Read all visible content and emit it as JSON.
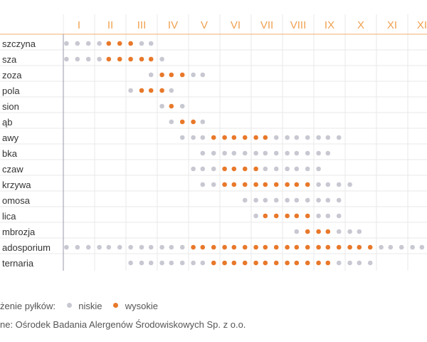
{
  "chart_data": {
    "type": "scatter",
    "months": [
      "I",
      "II",
      "III",
      "IV",
      "V",
      "VI",
      "VII",
      "VIII",
      "IX",
      "X",
      "XI",
      "XII"
    ],
    "rows": [
      {
        "label": "szczyna",
        "dots": [
          [
            0.1,
            "l"
          ],
          [
            0.45,
            "l"
          ],
          [
            0.8,
            "l"
          ],
          [
            1.15,
            "l"
          ],
          [
            1.45,
            "h"
          ],
          [
            1.8,
            "h"
          ],
          [
            2.15,
            "h"
          ],
          [
            2.5,
            "l"
          ],
          [
            2.8,
            "l"
          ]
        ]
      },
      {
        "label": "sza",
        "dots": [
          [
            0.1,
            "l"
          ],
          [
            0.45,
            "l"
          ],
          [
            0.8,
            "l"
          ],
          [
            1.15,
            "l"
          ],
          [
            1.45,
            "h"
          ],
          [
            1.8,
            "h"
          ],
          [
            2.15,
            "h"
          ],
          [
            2.5,
            "h"
          ],
          [
            2.8,
            "h"
          ],
          [
            3.15,
            "l"
          ]
        ]
      },
      {
        "label": "zoza",
        "dots": [
          [
            2.8,
            "l"
          ],
          [
            3.15,
            "h"
          ],
          [
            3.45,
            "h"
          ],
          [
            3.8,
            "h"
          ],
          [
            4.15,
            "l"
          ],
          [
            4.45,
            "l"
          ]
        ]
      },
      {
        "label": "pola",
        "dots": [
          [
            2.15,
            "l"
          ],
          [
            2.5,
            "h"
          ],
          [
            2.8,
            "h"
          ],
          [
            3.15,
            "h"
          ],
          [
            3.45,
            "l"
          ]
        ]
      },
      {
        "label": "sion",
        "dots": [
          [
            3.15,
            "l"
          ],
          [
            3.45,
            "h"
          ],
          [
            3.8,
            "l"
          ]
        ]
      },
      {
        "label": "ąb",
        "dots": [
          [
            3.45,
            "l"
          ],
          [
            3.8,
            "h"
          ],
          [
            4.15,
            "h"
          ],
          [
            4.45,
            "l"
          ]
        ]
      },
      {
        "label": "awy",
        "dots": [
          [
            3.8,
            "l"
          ],
          [
            4.15,
            "l"
          ],
          [
            4.45,
            "l"
          ],
          [
            4.8,
            "h"
          ],
          [
            5.15,
            "h"
          ],
          [
            5.45,
            "h"
          ],
          [
            5.8,
            "h"
          ],
          [
            6.15,
            "h"
          ],
          [
            6.45,
            "h"
          ],
          [
            6.8,
            "l"
          ],
          [
            7.15,
            "l"
          ],
          [
            7.45,
            "l"
          ],
          [
            7.8,
            "l"
          ],
          [
            8.15,
            "l"
          ],
          [
            8.45,
            "l"
          ],
          [
            8.8,
            "l"
          ]
        ]
      },
      {
        "label": "bka",
        "dots": [
          [
            4.45,
            "l"
          ],
          [
            4.8,
            "l"
          ],
          [
            5.15,
            "l"
          ],
          [
            5.45,
            "l"
          ],
          [
            5.8,
            "l"
          ],
          [
            6.15,
            "l"
          ],
          [
            6.45,
            "l"
          ],
          [
            6.8,
            "l"
          ],
          [
            7.15,
            "l"
          ],
          [
            7.45,
            "l"
          ],
          [
            7.8,
            "l"
          ],
          [
            8.15,
            "l"
          ],
          [
            8.45,
            "l"
          ]
        ]
      },
      {
        "label": "czaw",
        "dots": [
          [
            4.15,
            "l"
          ],
          [
            4.45,
            "l"
          ],
          [
            4.8,
            "l"
          ],
          [
            5.15,
            "h"
          ],
          [
            5.45,
            "h"
          ],
          [
            5.8,
            "h"
          ],
          [
            6.15,
            "h"
          ],
          [
            6.45,
            "l"
          ],
          [
            6.8,
            "l"
          ],
          [
            7.15,
            "l"
          ],
          [
            7.45,
            "l"
          ],
          [
            7.8,
            "l"
          ],
          [
            8.15,
            "l"
          ]
        ]
      },
      {
        "label": "krzywa",
        "dots": [
          [
            4.45,
            "l"
          ],
          [
            4.8,
            "l"
          ],
          [
            5.15,
            "h"
          ],
          [
            5.45,
            "h"
          ],
          [
            5.8,
            "h"
          ],
          [
            6.15,
            "h"
          ],
          [
            6.45,
            "h"
          ],
          [
            6.8,
            "h"
          ],
          [
            7.15,
            "h"
          ],
          [
            7.45,
            "h"
          ],
          [
            7.8,
            "h"
          ],
          [
            8.15,
            "l"
          ],
          [
            8.45,
            "l"
          ],
          [
            8.8,
            "l"
          ],
          [
            9.15,
            "l"
          ]
        ]
      },
      {
        "label": "omosa",
        "dots": [
          [
            5.8,
            "l"
          ],
          [
            6.15,
            "l"
          ],
          [
            6.45,
            "l"
          ],
          [
            6.8,
            "l"
          ],
          [
            7.15,
            "l"
          ],
          [
            7.45,
            "l"
          ],
          [
            7.8,
            "l"
          ],
          [
            8.15,
            "l"
          ],
          [
            8.45,
            "l"
          ],
          [
            8.8,
            "l"
          ]
        ]
      },
      {
        "label": "lica",
        "dots": [
          [
            6.15,
            "l"
          ],
          [
            6.45,
            "h"
          ],
          [
            6.8,
            "h"
          ],
          [
            7.15,
            "h"
          ],
          [
            7.45,
            "h"
          ],
          [
            7.8,
            "h"
          ],
          [
            8.15,
            "l"
          ],
          [
            8.45,
            "l"
          ],
          [
            8.8,
            "l"
          ]
        ]
      },
      {
        "label": "mbrozja",
        "dots": [
          [
            7.45,
            "l"
          ],
          [
            7.8,
            "h"
          ],
          [
            8.15,
            "h"
          ],
          [
            8.45,
            "h"
          ],
          [
            8.8,
            "l"
          ],
          [
            9.15,
            "l"
          ],
          [
            9.45,
            "l"
          ]
        ]
      },
      {
        "label": "adosporium",
        "dots": [
          [
            0.1,
            "l"
          ],
          [
            0.45,
            "l"
          ],
          [
            0.8,
            "l"
          ],
          [
            1.15,
            "l"
          ],
          [
            1.45,
            "l"
          ],
          [
            1.8,
            "l"
          ],
          [
            2.15,
            "l"
          ],
          [
            2.5,
            "l"
          ],
          [
            2.8,
            "l"
          ],
          [
            3.15,
            "l"
          ],
          [
            3.45,
            "l"
          ],
          [
            3.8,
            "l"
          ],
          [
            4.15,
            "h"
          ],
          [
            4.45,
            "h"
          ],
          [
            4.8,
            "h"
          ],
          [
            5.15,
            "h"
          ],
          [
            5.45,
            "h"
          ],
          [
            5.8,
            "h"
          ],
          [
            6.15,
            "h"
          ],
          [
            6.45,
            "h"
          ],
          [
            6.8,
            "h"
          ],
          [
            7.15,
            "h"
          ],
          [
            7.45,
            "h"
          ],
          [
            7.8,
            "h"
          ],
          [
            8.15,
            "h"
          ],
          [
            8.45,
            "h"
          ],
          [
            8.8,
            "h"
          ],
          [
            9.15,
            "h"
          ],
          [
            9.45,
            "h"
          ],
          [
            9.8,
            "h"
          ],
          [
            10.15,
            "l"
          ],
          [
            10.45,
            "l"
          ],
          [
            10.8,
            "l"
          ],
          [
            11.15,
            "l"
          ],
          [
            11.45,
            "l"
          ]
        ]
      },
      {
        "label": "ternaria",
        "dots": [
          [
            2.15,
            "l"
          ],
          [
            2.5,
            "l"
          ],
          [
            2.8,
            "l"
          ],
          [
            3.15,
            "l"
          ],
          [
            3.45,
            "l"
          ],
          [
            3.8,
            "l"
          ],
          [
            4.15,
            "l"
          ],
          [
            4.45,
            "l"
          ],
          [
            4.8,
            "h"
          ],
          [
            5.15,
            "h"
          ],
          [
            5.45,
            "h"
          ],
          [
            5.8,
            "h"
          ],
          [
            6.15,
            "h"
          ],
          [
            6.45,
            "h"
          ],
          [
            6.8,
            "h"
          ],
          [
            7.15,
            "h"
          ],
          [
            7.45,
            "h"
          ],
          [
            7.8,
            "h"
          ],
          [
            8.15,
            "h"
          ],
          [
            8.45,
            "h"
          ],
          [
            8.8,
            "l"
          ],
          [
            9.15,
            "l"
          ],
          [
            9.45,
            "l"
          ],
          [
            9.8,
            "l"
          ]
        ]
      }
    ],
    "level_codes": {
      "l": "niskie",
      "h": "wysokie"
    },
    "colors": {
      "low": "#c8c8d2",
      "high": "#e8782a",
      "month_label": "#f0a050",
      "grid": "#e8e8e8",
      "header_rule": "#f0b070",
      "axis": "#9a9aaa",
      "row_text": "#333333"
    }
  },
  "legend": {
    "prefix": "żenie pyłków:",
    "low_label": "niskie",
    "high_label": "wysokie"
  },
  "source": "ne: Ośrodek Badania Alergenów Środowiskowych Sp. z o.o."
}
